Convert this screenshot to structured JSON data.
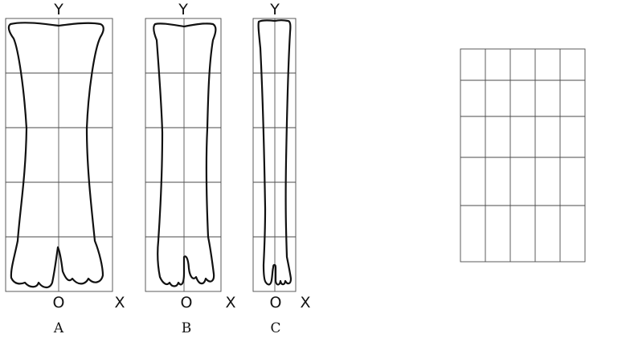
{
  "figure": {
    "panels": [
      {
        "id": "A",
        "caption": "A",
        "y_axis_label": "Y",
        "origin_label": "O",
        "x_axis_label": "X"
      },
      {
        "id": "B",
        "caption": "B",
        "y_axis_label": "Y",
        "origin_label": "O",
        "x_axis_label": "X"
      },
      {
        "id": "C",
        "caption": "C",
        "y_axis_label": "Y",
        "origin_label": "O",
        "x_axis_label": "X"
      }
    ],
    "blank_grid": {
      "columns": 5,
      "rows": 5
    }
  }
}
